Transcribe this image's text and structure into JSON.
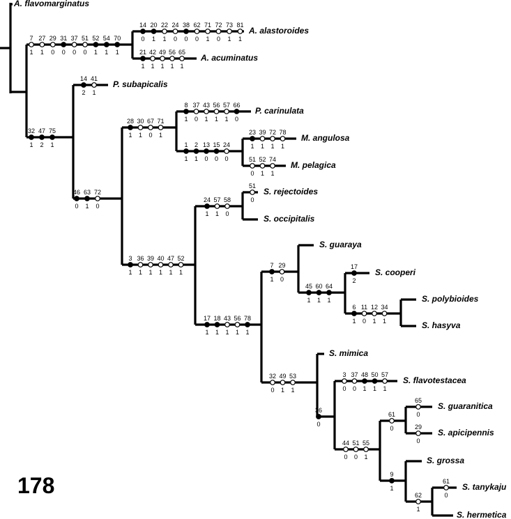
{
  "page_number": "178",
  "taxa": [
    {
      "label": "A. flavomarginatus"
    },
    {
      "label": "A. alastoroides"
    },
    {
      "label": "A. acuminatus"
    },
    {
      "label": "P. subapicalis"
    },
    {
      "label": "P. carinulata"
    },
    {
      "label": "M. angulosa"
    },
    {
      "label": "M. pelagica"
    },
    {
      "label": "S. rejectoides"
    },
    {
      "label": "S. occipitalis"
    },
    {
      "label": "S. guaraya"
    },
    {
      "label": "S. cooperi"
    },
    {
      "label": "S. polybioides"
    },
    {
      "label": "S. hasyva"
    },
    {
      "label": "S. mimica"
    },
    {
      "label": "S. flavotestacea"
    },
    {
      "label": "S. guaranitica"
    },
    {
      "label": "S. apicipennis"
    },
    {
      "label": "S. grossa"
    },
    {
      "label": "S. tanykaju"
    },
    {
      "label": "S. hermetica"
    }
  ],
  "branches": [
    {
      "characters": [
        {
          "n": 7,
          "state": 1,
          "open": true
        },
        {
          "n": 27,
          "state": 1,
          "open": true
        },
        {
          "n": 29,
          "state": 0,
          "open": true
        },
        {
          "n": 31,
          "state": 0,
          "open": false
        },
        {
          "n": 37,
          "state": 0,
          "open": true
        },
        {
          "n": 51,
          "state": 0,
          "open": true
        },
        {
          "n": 52,
          "state": 1,
          "open": false
        },
        {
          "n": 54,
          "state": 1,
          "open": false
        },
        {
          "n": 70,
          "state": 1,
          "open": false
        }
      ]
    },
    {
      "characters": [
        {
          "n": 14,
          "state": 0,
          "open": false
        },
        {
          "n": 20,
          "state": 1,
          "open": false
        },
        {
          "n": 22,
          "state": 1,
          "open": true
        },
        {
          "n": 24,
          "state": 0,
          "open": true
        },
        {
          "n": 38,
          "state": 0,
          "open": false
        },
        {
          "n": 62,
          "state": 0,
          "open": true
        },
        {
          "n": 71,
          "state": 1,
          "open": true
        },
        {
          "n": 72,
          "state": 0,
          "open": true
        },
        {
          "n": 73,
          "state": 1,
          "open": true
        },
        {
          "n": 81,
          "state": 1,
          "open": true
        }
      ]
    },
    {
      "characters": [
        {
          "n": 21,
          "state": 1,
          "open": false
        },
        {
          "n": 42,
          "state": 1,
          "open": true
        },
        {
          "n": 49,
          "state": 1,
          "open": true
        },
        {
          "n": 56,
          "state": 1,
          "open": true
        },
        {
          "n": 65,
          "state": 1,
          "open": true
        }
      ]
    },
    {
      "characters": [
        {
          "n": 32,
          "state": 1,
          "open": false
        },
        {
          "n": 47,
          "state": 2,
          "open": false
        },
        {
          "n": 75,
          "state": 1,
          "open": false
        }
      ]
    },
    {
      "characters": [
        {
          "n": 14,
          "state": 2,
          "open": false
        },
        {
          "n": 41,
          "state": 1,
          "open": true
        }
      ]
    },
    {
      "characters": [
        {
          "n": 46,
          "state": 0,
          "open": false
        },
        {
          "n": 63,
          "state": 1,
          "open": false
        },
        {
          "n": 72,
          "state": 0,
          "open": true
        }
      ]
    },
    {
      "characters": [
        {
          "n": 28,
          "state": 1,
          "open": false
        },
        {
          "n": 30,
          "state": 1,
          "open": true
        },
        {
          "n": 67,
          "state": 0,
          "open": true
        },
        {
          "n": 71,
          "state": 1,
          "open": true
        }
      ]
    },
    {
      "characters": [
        {
          "n": 8,
          "state": 1,
          "open": false
        },
        {
          "n": 37,
          "state": 0,
          "open": true
        },
        {
          "n": 43,
          "state": 1,
          "open": true
        },
        {
          "n": 56,
          "state": 1,
          "open": true
        },
        {
          "n": 57,
          "state": 1,
          "open": true
        },
        {
          "n": 66,
          "state": 0,
          "open": false
        }
      ]
    },
    {
      "characters": [
        {
          "n": 1,
          "state": 1,
          "open": false
        },
        {
          "n": 2,
          "state": 1,
          "open": false
        },
        {
          "n": 13,
          "state": 0,
          "open": false
        },
        {
          "n": 15,
          "state": 0,
          "open": false
        },
        {
          "n": 24,
          "state": 0,
          "open": true
        }
      ]
    },
    {
      "characters": [
        {
          "n": 23,
          "state": 1,
          "open": false
        },
        {
          "n": 39,
          "state": 1,
          "open": true
        },
        {
          "n": 72,
          "state": 1,
          "open": true
        },
        {
          "n": 78,
          "state": 1,
          "open": true
        }
      ]
    },
    {
      "characters": [
        {
          "n": 51,
          "state": 0,
          "open": true
        },
        {
          "n": 52,
          "state": 1,
          "open": true
        },
        {
          "n": 74,
          "state": 1,
          "open": true
        }
      ]
    },
    {
      "characters": [
        {
          "n": 3,
          "state": 1,
          "open": false
        },
        {
          "n": 36,
          "state": 1,
          "open": true
        },
        {
          "n": 39,
          "state": 1,
          "open": true
        },
        {
          "n": 40,
          "state": 1,
          "open": true
        },
        {
          "n": 47,
          "state": 1,
          "open": true
        },
        {
          "n": 52,
          "state": 1,
          "open": true
        }
      ]
    },
    {
      "characters": [
        {
          "n": 24,
          "state": 1,
          "open": false
        },
        {
          "n": 57,
          "state": 1,
          "open": true
        },
        {
          "n": 58,
          "state": 0,
          "open": true
        }
      ]
    },
    {
      "characters": [
        {
          "n": 51,
          "state": 0,
          "open": true
        }
      ]
    },
    {
      "characters": [
        {
          "n": 17,
          "state": 1,
          "open": false
        },
        {
          "n": 18,
          "state": 1,
          "open": false
        },
        {
          "n": 43,
          "state": 1,
          "open": true
        },
        {
          "n": 56,
          "state": 1,
          "open": true
        },
        {
          "n": 78,
          "state": 1,
          "open": false
        }
      ]
    },
    {
      "characters": [
        {
          "n": 7,
          "state": 1,
          "open": false
        },
        {
          "n": 29,
          "state": 0,
          "open": true
        }
      ]
    },
    {
      "characters": [
        {
          "n": 45,
          "state": 1,
          "open": false
        },
        {
          "n": 60,
          "state": 1,
          "open": false
        },
        {
          "n": 64,
          "state": 1,
          "open": false
        }
      ]
    },
    {
      "characters": [
        {
          "n": 17,
          "state": 2,
          "open": false
        }
      ]
    },
    {
      "characters": [
        {
          "n": 6,
          "state": 1,
          "open": false
        },
        {
          "n": 11,
          "state": 0,
          "open": true
        },
        {
          "n": 12,
          "state": 1,
          "open": true
        },
        {
          "n": 34,
          "state": 1,
          "open": true
        }
      ]
    },
    {
      "characters": [
        {
          "n": 32,
          "state": 0,
          "open": true
        },
        {
          "n": 49,
          "state": 1,
          "open": true
        },
        {
          "n": 53,
          "state": 1,
          "open": true
        }
      ]
    },
    {
      "characters": [
        {
          "n": 36,
          "state": 0,
          "open": false
        }
      ]
    },
    {
      "characters": [
        {
          "n": 3,
          "state": 0,
          "open": true
        },
        {
          "n": 37,
          "state": 0,
          "open": true
        },
        {
          "n": 48,
          "state": 1,
          "open": false
        },
        {
          "n": 50,
          "state": 1,
          "open": false
        },
        {
          "n": 57,
          "state": 1,
          "open": true
        }
      ]
    },
    {
      "characters": [
        {
          "n": 44,
          "state": 0,
          "open": true
        },
        {
          "n": 51,
          "state": 0,
          "open": true
        },
        {
          "n": 55,
          "state": 1,
          "open": true
        }
      ]
    },
    {
      "characters": [
        {
          "n": 61,
          "state": 0,
          "open": true
        }
      ]
    },
    {
      "characters": [
        {
          "n": 65,
          "state": 0,
          "open": true
        }
      ]
    },
    {
      "characters": [
        {
          "n": 29,
          "state": 0,
          "open": true
        }
      ]
    },
    {
      "characters": [
        {
          "n": 9,
          "state": 1,
          "open": false
        }
      ]
    },
    {
      "characters": [
        {
          "n": 62,
          "state": 1,
          "open": true
        }
      ]
    },
    {
      "characters": [
        {
          "n": 61,
          "state": 0,
          "open": true
        }
      ]
    }
  ]
}
